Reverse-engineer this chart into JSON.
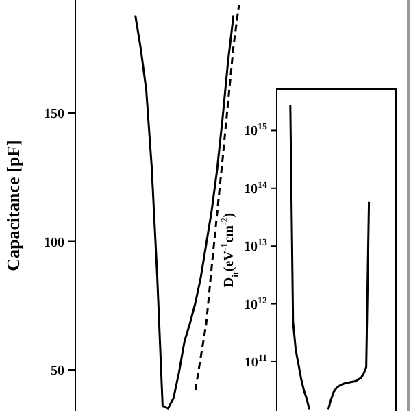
{
  "chart_data": [
    {
      "type": "line",
      "ylabel": "Capacitance [pF]",
      "ylim": [
        34,
        194
      ],
      "yticks": [
        50,
        100,
        150
      ],
      "tick_labels": "y",
      "categories": [
        null,
        null,
        null,
        null,
        null,
        null,
        null,
        null,
        null,
        null,
        null,
        null,
        null,
        null,
        null,
        null,
        null,
        null,
        null,
        null
      ],
      "series": [
        {
          "color": "#000000",
          "line_style": "solid",
          "values": [
            188,
            175,
            159,
            129,
            87,
            36,
            35,
            39,
            49,
            61,
            68,
            76,
            86,
            99,
            112,
            128,
            148,
            170,
            188,
            null
          ]
        },
        {
          "color": "#000000",
          "line_style": "dashed",
          "values": [
            null,
            null,
            null,
            null,
            null,
            null,
            null,
            null,
            null,
            null,
            null,
            42,
            55,
            68,
            90,
            111,
            132,
            154,
            176,
            192
          ]
        }
      ]
    },
    {
      "type": "line",
      "ylabel": "D$_{it}$(eV$^{-1}$cm$^{-2}$)",
      "log": true,
      "ylim": [
        14000000000.0,
        5200000000000000.0
      ],
      "tick_labels": "y",
      "yticks": [
        {
          "value": 100000000000.0,
          "label": "10$^{11}$"
        },
        {
          "value": 1000000000000.0,
          "label": "10$^{12}$"
        },
        {
          "value": 10000000000000.0,
          "label": "10$^{13}$"
        },
        {
          "value": 100000000000000.0,
          "label": "10$^{14}$"
        },
        {
          "value": 1000000000000000.0,
          "label": "10$^{15}$"
        }
      ],
      "categories": [
        null,
        null,
        null,
        null,
        null,
        null,
        null,
        null,
        null,
        null,
        null,
        null,
        null,
        null,
        null,
        null,
        null,
        null,
        null,
        null,
        null,
        null,
        null,
        null,
        null,
        null,
        null,
        null,
        null,
        null
      ],
      "series": [
        {
          "color": "#000000",
          "line_style": "solid",
          "values": [
            2700000000000000.0,
            490000000000.0,
            160000000000.0,
            90000000000.0,
            50000000000.0,
            32000000000.0,
            23000000000.0,
            15000000000.0,
            null,
            null,
            null,
            null,
            null,
            null,
            null,
            null,
            null,
            null,
            null,
            null,
            null,
            null,
            null,
            null,
            null,
            null,
            null,
            null,
            null,
            null
          ]
        },
        {
          "color": "#000000",
          "line_style": "solid",
          "values": [
            null,
            null,
            null,
            null,
            null,
            null,
            null,
            null,
            null,
            null,
            null,
            null,
            null,
            null,
            15000000000.0,
            22000000000.0,
            30000000000.0,
            35000000000.0,
            38000000000.0,
            40000000000.0,
            42000000000.0,
            43000000000.0,
            44000000000.0,
            45000000000.0,
            46000000000.0,
            49000000000.0,
            52000000000.0,
            61000000000.0,
            80000000000.0,
            58000000000000.0
          ]
        }
      ]
    }
  ]
}
